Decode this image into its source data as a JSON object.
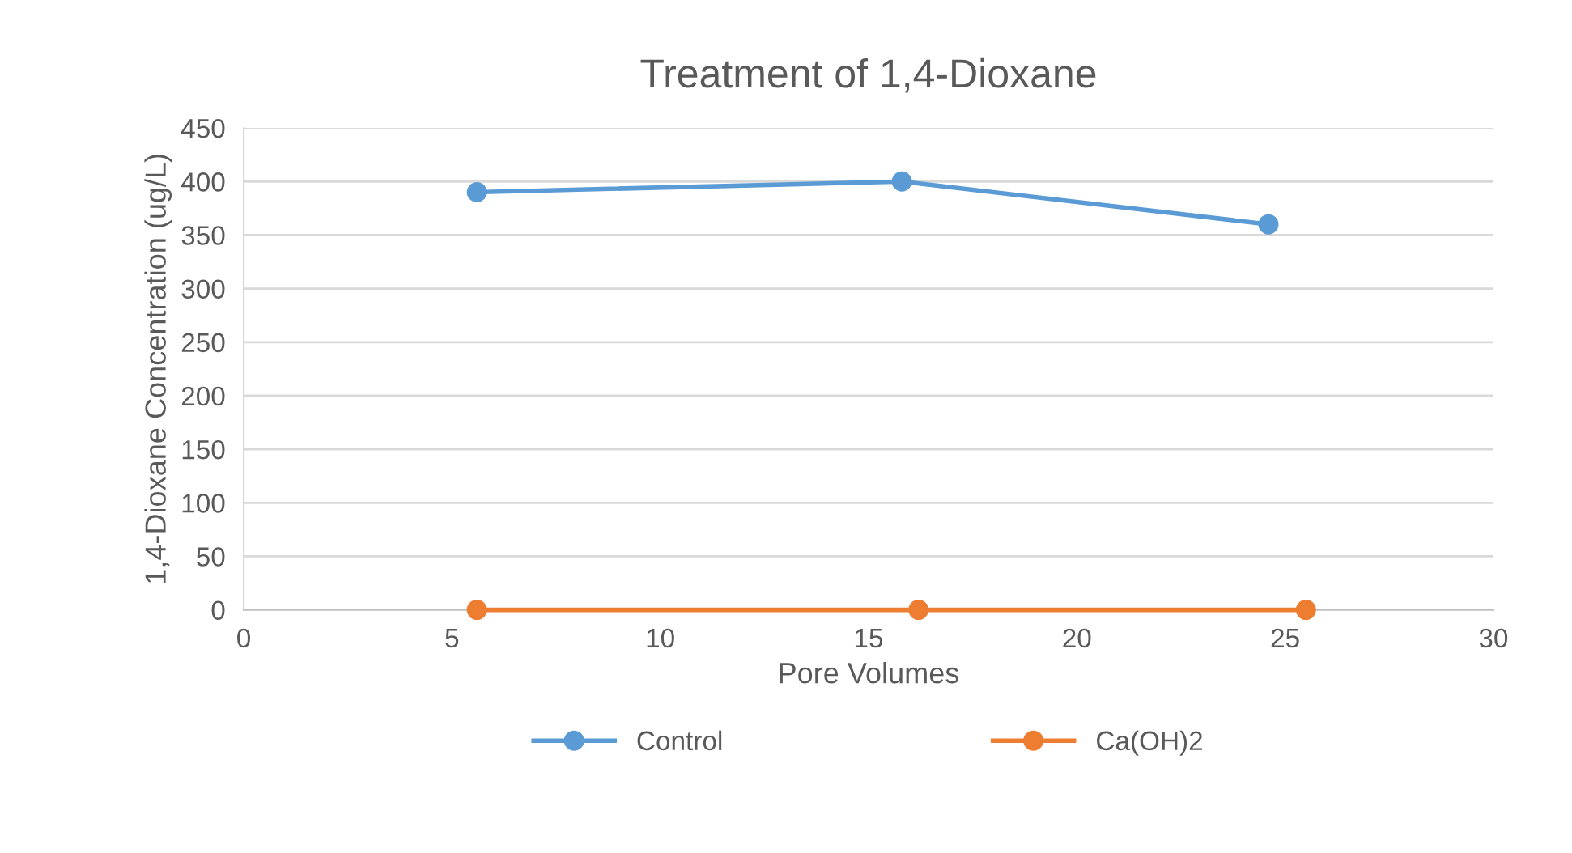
{
  "chart_data": {
    "type": "line",
    "title": "Treatment of 1,4-Dioxane",
    "xlabel": "Pore Volumes",
    "ylabel": "1,4-Dioxane Concentration (ug/L)",
    "series": [
      {
        "name": "Control",
        "color": "#5b9bd5",
        "x": [
          5.6,
          15.8,
          24.6
        ],
        "values": [
          390,
          400,
          360
        ]
      },
      {
        "name": "Ca(OH)2",
        "color": "#ed7d31",
        "x": [
          5.6,
          16.2,
          25.5
        ],
        "values": [
          0,
          0,
          0
        ]
      }
    ],
    "xlim": [
      0,
      30
    ],
    "xticks": [
      0,
      5,
      10,
      15,
      20,
      25,
      30
    ],
    "ylim": [
      0,
      450
    ],
    "yticks": [
      0,
      50,
      100,
      150,
      200,
      250,
      300,
      350,
      400,
      450
    ],
    "grid": "y",
    "legend": "bottom",
    "marker": "circle",
    "line_style": "solid"
  }
}
